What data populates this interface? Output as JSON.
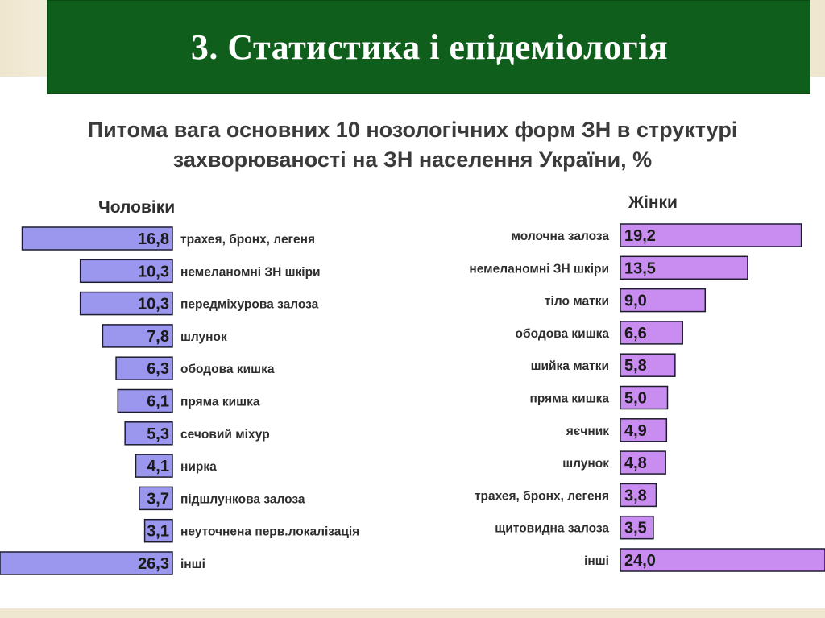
{
  "slide": {
    "title": "3. Статистика і епідеміологія"
  },
  "colors": {
    "title_bar": "#0f5e1c",
    "men_bar": "#9b96ee",
    "women_bar": "#c98cf0",
    "bar_border": "#1c1c2e"
  },
  "chart_data": [
    {
      "type": "bar",
      "orientation": "horizontal",
      "direction": "right-to-left",
      "panel": "men",
      "title": "Питома вага основних 10 нозологічних форм ЗН в структурі захворюваності на ЗН населення України, %",
      "series_label": "Чоловіки",
      "categories": [
        "трахея, бронх, легеня",
        "немеланомні ЗН шкіри",
        "передміхурова залоза",
        "шлунок",
        "ободова кишка",
        "пряма кишка",
        "сечовий міхур",
        "нирка",
        "підшлункова залоза",
        "неуточнена перв.локалізація",
        "інші"
      ],
      "values": [
        16.8,
        10.3,
        10.3,
        7.8,
        6.3,
        6.1,
        5.3,
        4.1,
        3.7,
        3.1,
        26.3
      ],
      "value_labels": [
        "16,8",
        "10,3",
        "10,3",
        "7,8",
        "6,3",
        "6,1",
        "5,3",
        "4,1",
        "3,7",
        "3,1",
        "26,3"
      ],
      "unit": "%"
    },
    {
      "type": "bar",
      "orientation": "horizontal",
      "direction": "left-to-right",
      "panel": "women",
      "title": "Питома вага основних 10 нозологічних форм ЗН в структурі захворюваності на ЗН населення України, %",
      "series_label": "Жінки",
      "categories": [
        "молочна залоза",
        "немеланомні ЗН шкіри",
        "тіло матки",
        "ободова кишка",
        "шийка матки",
        "пряма кишка",
        "яєчник",
        "шлунок",
        "трахея, бронх, легеня",
        "щитовидна залоза",
        "інші"
      ],
      "values": [
        19.2,
        13.5,
        9.0,
        6.6,
        5.8,
        5.0,
        4.9,
        4.8,
        3.8,
        3.5,
        24.0
      ],
      "value_labels": [
        "19,2",
        "13,5",
        "9,0",
        "6,6",
        "5,8",
        "5,0",
        "4,9",
        "4,8",
        "3,8",
        "3,5",
        "24,0"
      ],
      "unit": "%"
    }
  ]
}
